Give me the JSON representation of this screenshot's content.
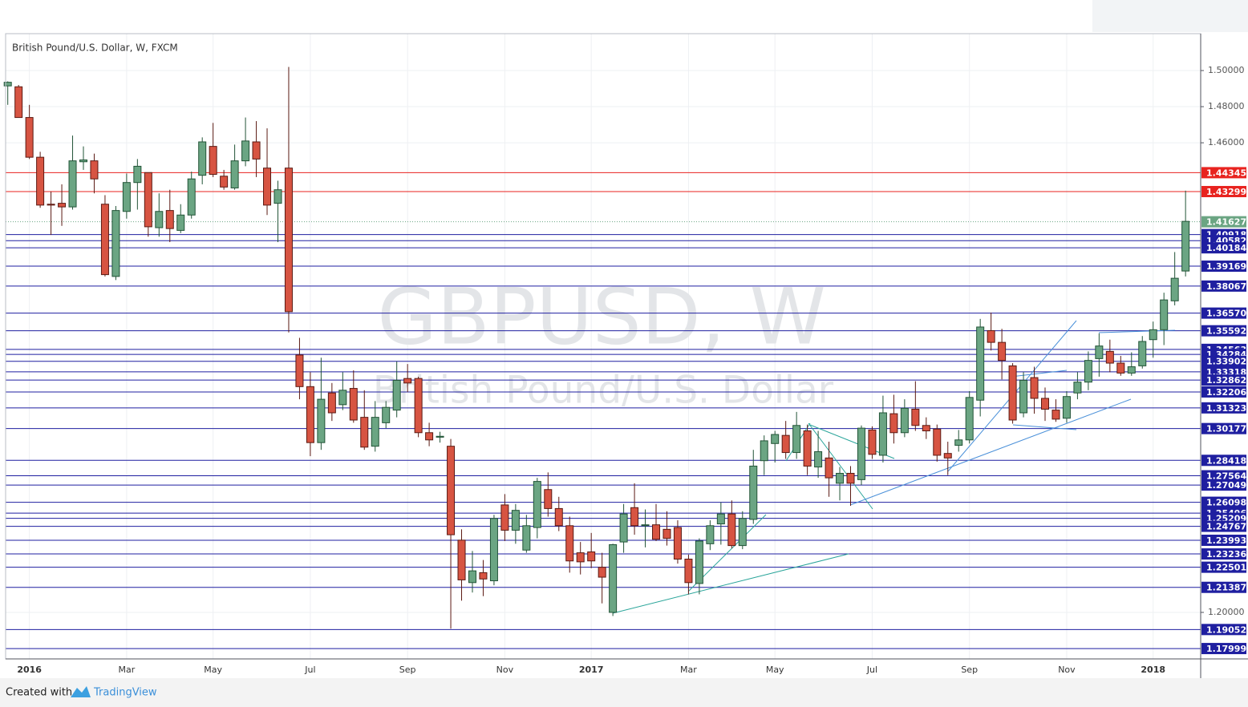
{
  "chart_data": {
    "type": "candlestick",
    "title": "British Pound/U.S. Dollar, W, FXCM",
    "watermark": "GBPUSD, W",
    "watermark_subtitle": "British Pound/U.S. Dollar",
    "footer": {
      "prefix": "Created with",
      "brand": "TradingView"
    },
    "open": [
      1.4915,
      1.491,
      1.474,
      1.452,
      1.426,
      1.4265,
      1.4245,
      1.4495,
      1.45,
      1.426,
      1.386,
      1.422,
      1.438,
      1.4435,
      1.413,
      1.4225,
      1.4115,
      1.42,
      1.442,
      1.458,
      1.4415,
      1.435,
      1.45,
      1.4605,
      1.446,
      1.4265,
      1.446,
      1.3425,
      1.325,
      1.294,
      1.3215,
      1.315,
      1.324,
      1.308,
      1.292,
      1.305,
      1.312,
      1.3295,
      1.3295,
      1.2995,
      1.297,
      1.292,
      1.24,
      1.2165,
      1.222,
      1.2175,
      1.2595,
      1.2455,
      1.2345,
      1.247,
      1.268,
      1.2575,
      1.248,
      1.233,
      1.2335,
      1.225,
      1.2,
      1.239,
      1.258,
      1.248,
      1.2485,
      1.246,
      1.247,
      1.2295,
      1.216,
      1.238,
      1.249,
      1.2545,
      1.237,
      1.2515,
      1.284,
      1.2935,
      1.298,
      1.2885,
      1.3005,
      1.2805,
      1.2855,
      1.2715,
      1.277,
      1.2735,
      1.301,
      1.287,
      1.31,
      1.2995,
      1.3125,
      1.3035,
      1.3015,
      1.288,
      1.2925,
      1.2955,
      1.3175,
      1.356,
      1.3495,
      1.3365,
      1.3105,
      1.33,
      1.3185,
      1.312,
      1.3075,
      1.3215,
      1.3275,
      1.3405,
      1.3445,
      1.338,
      1.3325,
      1.3365,
      1.351,
      1.3565,
      1.3725,
      1.389
    ],
    "high": [
      1.494,
      1.492,
      1.481,
      1.455,
      1.433,
      1.437,
      1.464,
      1.458,
      1.454,
      1.431,
      1.425,
      1.443,
      1.451,
      1.4435,
      1.432,
      1.434,
      1.426,
      1.444,
      1.463,
      1.471,
      1.445,
      1.459,
      1.474,
      1.472,
      1.468,
      1.439,
      1.502,
      1.352,
      1.333,
      1.341,
      1.327,
      1.333,
      1.334,
      1.323,
      1.317,
      1.317,
      1.339,
      1.3375,
      1.3305,
      1.305,
      1.3,
      1.296,
      1.246,
      1.234,
      1.229,
      1.254,
      1.2655,
      1.26,
      1.254,
      1.2745,
      1.2775,
      1.264,
      1.253,
      1.239,
      1.244,
      1.233,
      1.238,
      1.26,
      1.2715,
      1.257,
      1.26,
      1.256,
      1.251,
      1.232,
      1.241,
      1.251,
      1.261,
      1.262,
      1.256,
      1.29,
      1.298,
      1.3005,
      1.306,
      1.311,
      1.304,
      1.3005,
      1.2945,
      1.2805,
      1.281,
      1.3035,
      1.303,
      1.32,
      1.3205,
      1.318,
      1.328,
      1.308,
      1.304,
      1.2945,
      1.301,
      1.3225,
      1.3625,
      1.366,
      1.357,
      1.338,
      1.333,
      1.336,
      1.3245,
      1.318,
      1.3225,
      1.333,
      1.3445,
      1.3545,
      1.351,
      1.342,
      1.344,
      1.353,
      1.361,
      1.377,
      1.3995,
      1.4335
    ],
    "low": [
      1.481,
      1.474,
      1.451,
      1.424,
      1.409,
      1.414,
      1.423,
      1.445,
      1.432,
      1.386,
      1.384,
      1.418,
      1.423,
      1.408,
      1.408,
      1.405,
      1.41,
      1.418,
      1.437,
      1.441,
      1.434,
      1.434,
      1.447,
      1.441,
      1.42,
      1.405,
      1.355,
      1.318,
      1.2865,
      1.29,
      1.306,
      1.312,
      1.305,
      1.29,
      1.289,
      1.302,
      1.308,
      1.322,
      1.297,
      1.292,
      1.294,
      1.191,
      1.2065,
      1.211,
      1.209,
      1.215,
      1.2395,
      1.238,
      1.233,
      1.241,
      1.253,
      1.245,
      1.222,
      1.221,
      1.2245,
      1.205,
      1.198,
      1.233,
      1.243,
      1.236,
      1.2395,
      1.237,
      1.227,
      1.21,
      1.21,
      1.2345,
      1.2375,
      1.2355,
      1.235,
      1.249,
      1.276,
      1.283,
      1.285,
      1.285,
      1.276,
      1.2745,
      1.264,
      1.262,
      1.259,
      1.2705,
      1.285,
      1.283,
      1.2935,
      1.297,
      1.3005,
      1.296,
      1.2835,
      1.276,
      1.289,
      1.2935,
      1.3085,
      1.345,
      1.329,
      1.3045,
      1.308,
      1.31,
      1.306,
      1.3055,
      1.305,
      1.318,
      1.323,
      1.3305,
      1.333,
      1.331,
      1.331,
      1.335,
      1.341,
      1.348,
      1.37,
      1.386
    ],
    "close": [
      1.4935,
      1.474,
      1.452,
      1.4255,
      1.4255,
      1.4245,
      1.45,
      1.4505,
      1.44,
      1.387,
      1.4225,
      1.438,
      1.447,
      1.4135,
      1.422,
      1.4125,
      1.42,
      1.44,
      1.4605,
      1.4425,
      1.4355,
      1.45,
      1.461,
      1.451,
      1.4255,
      1.434,
      1.3665,
      1.325,
      1.294,
      1.318,
      1.3105,
      1.323,
      1.3065,
      1.2915,
      1.308,
      1.3135,
      1.3285,
      1.327,
      1.2995,
      1.2955,
      1.2975,
      1.243,
      1.218,
      1.223,
      1.2185,
      1.252,
      1.2455,
      1.2565,
      1.248,
      1.2725,
      1.2575,
      1.248,
      1.2285,
      1.228,
      1.2285,
      1.2195,
      1.2375,
      1.2545,
      1.248,
      1.2485,
      1.2405,
      1.241,
      1.2295,
      1.2165,
      1.2395,
      1.248,
      1.2545,
      1.237,
      1.252,
      1.281,
      1.295,
      1.2985,
      1.2885,
      1.3035,
      1.281,
      1.289,
      1.2745,
      1.277,
      1.2715,
      1.302,
      1.2875,
      1.3105,
      1.2995,
      1.313,
      1.3035,
      1.3005,
      1.287,
      1.2855,
      1.2955,
      1.319,
      1.358,
      1.3495,
      1.3395,
      1.3065,
      1.3285,
      1.3185,
      1.3125,
      1.307,
      1.3195,
      1.3275,
      1.3395,
      1.3475,
      1.338,
      1.3325,
      1.336,
      1.35,
      1.3565,
      1.373,
      1.385,
      1.4165
    ],
    "up_color": "#6ba583",
    "down_color": "#d75442",
    "xlim": [
      -0.2,
      110.4
    ],
    "xticks": [
      {
        "value": 2,
        "label": "2016"
      },
      {
        "value": 11,
        "label": "Mar"
      },
      {
        "value": 19,
        "label": "May"
      },
      {
        "value": 28,
        "label": "Jul"
      },
      {
        "value": 37,
        "label": "Sep"
      },
      {
        "value": 46,
        "label": "Nov"
      },
      {
        "value": 54,
        "label": "2017"
      },
      {
        "value": 63,
        "label": "Mar"
      },
      {
        "value": 71,
        "label": "May"
      },
      {
        "value": 80,
        "label": "Jul"
      },
      {
        "value": 89,
        "label": "Sep"
      },
      {
        "value": 98,
        "label": "Nov"
      },
      {
        "value": 106,
        "label": "2018"
      }
    ],
    "ylim": [
      1.17425,
      1.52041
    ],
    "yticks": [
      {
        "value": 1.5,
        "label": "1.50000"
      },
      {
        "value": 1.48,
        "label": "1.48000"
      },
      {
        "value": 1.46,
        "label": "1.46000"
      },
      {
        "value": 1.2,
        "label": "1.20000"
      }
    ],
    "grid": true,
    "resistance_color": "#e8231f",
    "resistance_levels": [
      1.44345,
      1.43299
    ],
    "last_price": 1.41627,
    "last_price_color": "#6ba583",
    "support_color": "#1f1fa0",
    "support_levels": [
      1.40918,
      1.40582,
      1.40184,
      1.39169,
      1.38067,
      {
        "value": 1.3657,
        "label": "1.36570"
      },
      1.35592,
      1.34563,
      1.34284,
      1.33902,
      1.33318,
      1.32862,
      1.32206,
      1.31323,
      1.30177,
      1.28418,
      1.27564,
      1.27049,
      1.26098,
      1.25496,
      1.25209,
      1.24767,
      1.23993,
      1.23236,
      1.22501,
      1.21387,
      1.19052,
      1.17999
    ]
  }
}
